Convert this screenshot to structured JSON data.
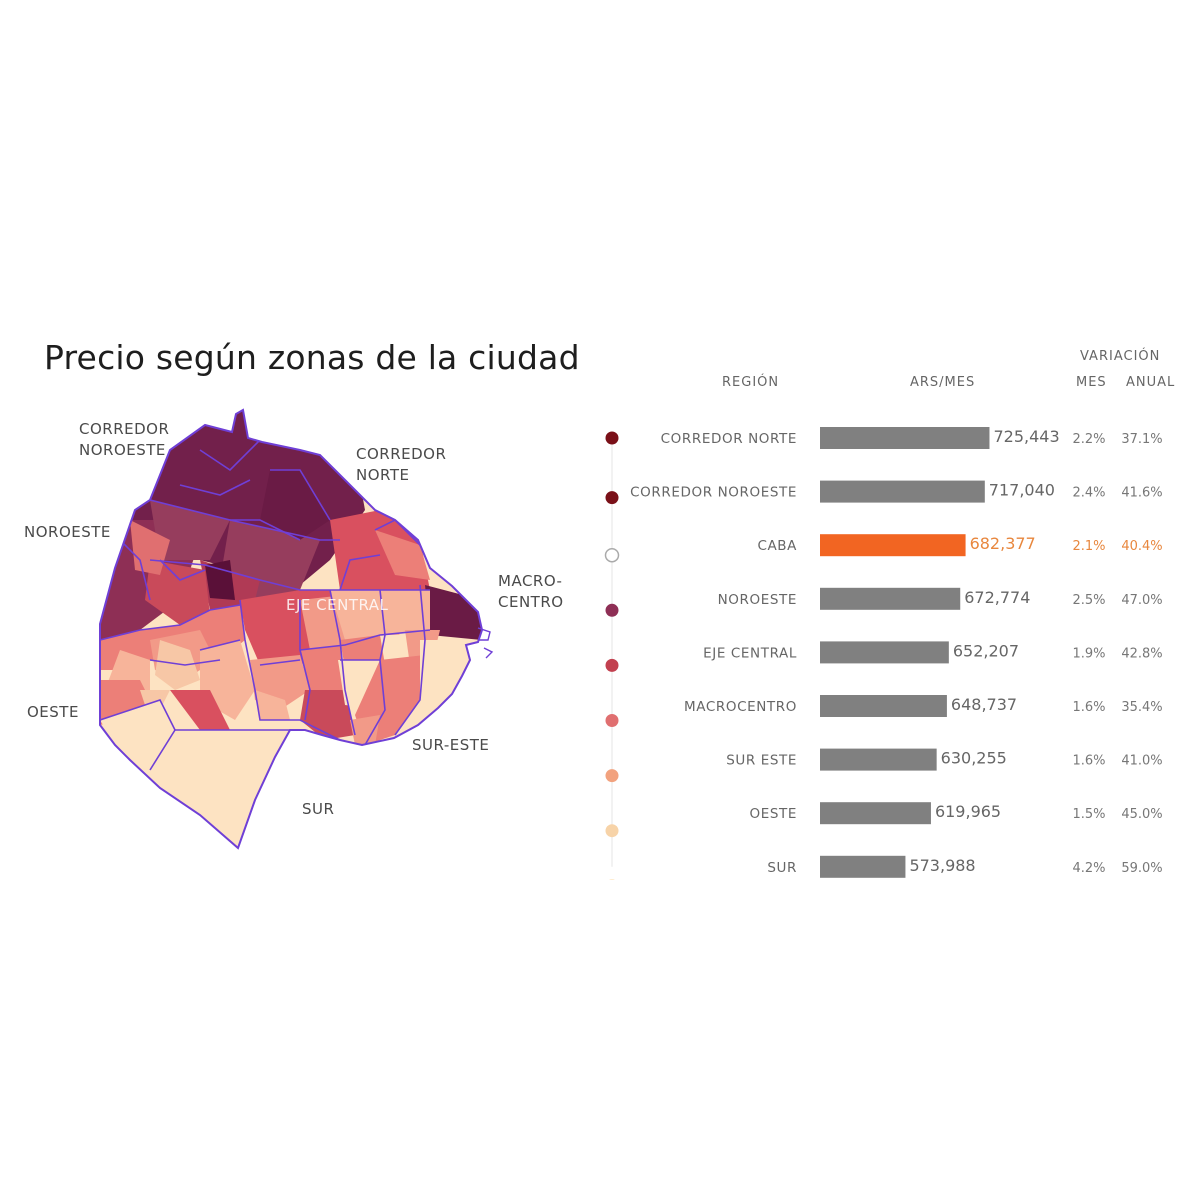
{
  "title": "Precio según zonas de la ciudad",
  "map_labels": {
    "corredor_noroeste": [
      "CORREDOR",
      "NOROESTE"
    ],
    "corredor_norte": [
      "CORREDOR",
      "NORTE"
    ],
    "noroeste": "NOROESTE",
    "macrocentro": [
      "MACRO-",
      "CENTRO"
    ],
    "eje_central": "EJE CENTRAL",
    "oeste": "OESTE",
    "sur_este": "SUR-ESTE",
    "sur": "SUR"
  },
  "headers": {
    "region": "REGIÓN",
    "ars_mes": "ARS/MES",
    "variacion": "VARIACIÓN",
    "mes": "MES",
    "anual": "ANUAL"
  },
  "colors": {
    "bar": "#808080",
    "highlight": "#f26522",
    "highlight_text": "#e8873e"
  },
  "chart_data": {
    "type": "bar",
    "orientation": "horizontal",
    "categories": [
      "CORREDOR NORTE",
      "CORREDOR NOROESTE",
      "CABA",
      "NOROESTE",
      "EJE CENTRAL",
      "MACROCENTRO",
      "SUR ESTE",
      "OESTE",
      "SUR"
    ],
    "values": [
      725443,
      717040,
      682377,
      672774,
      652207,
      648737,
      630255,
      619965,
      573988
    ],
    "value_labels": [
      "725,443",
      "717,040",
      "682,377",
      "672,774",
      "652,207",
      "648,737",
      "630,255",
      "619,965",
      "573,988"
    ],
    "variacion_mes": [
      "2.2%",
      "2.4%",
      "2.1%",
      "2.5%",
      "1.9%",
      "1.6%",
      "1.6%",
      "1.5%",
      "4.2%"
    ],
    "variacion_anual": [
      "37.1%",
      "41.6%",
      "40.4%",
      "47.0%",
      "42.8%",
      "35.4%",
      "41.0%",
      "45.0%",
      "59.0%"
    ],
    "dot_colors": [
      "#7a1018",
      "#7a1018",
      "none",
      "#8e2f55",
      "#c2404f",
      "#e06f70",
      "#f2a27e",
      "#f7d3a8",
      "#fde4bd"
    ],
    "highlight": "CABA",
    "xlim": [
      420000,
      730000
    ]
  }
}
